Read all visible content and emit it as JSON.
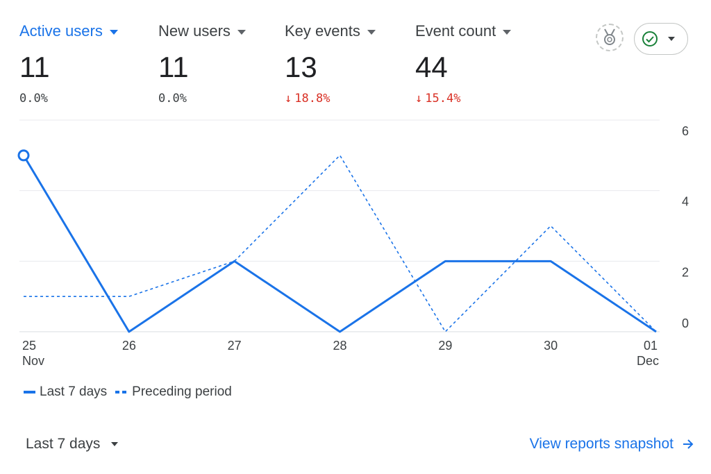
{
  "metrics": [
    {
      "label": "Active users",
      "value": "11",
      "delta": "0.0%",
      "direction": "none",
      "active": true
    },
    {
      "label": "New users",
      "value": "11",
      "delta": "0.0%",
      "direction": "none",
      "active": false
    },
    {
      "label": "Key events",
      "value": "13",
      "delta": "18.8%",
      "direction": "down",
      "active": false
    },
    {
      "label": "Event count",
      "value": "44",
      "delta": "15.4%",
      "direction": "down",
      "active": false
    }
  ],
  "toolbar": {
    "badge_icon": "medal-icon",
    "status_icon": "check-circle-icon",
    "status_color": "#188038"
  },
  "chart_data": {
    "type": "line",
    "x": [
      "25 Nov",
      "26",
      "27",
      "28",
      "29",
      "30",
      "01 Dec"
    ],
    "x_ticks": [
      {
        "line1": "25",
        "line2": "Nov"
      },
      {
        "line1": "26",
        "line2": ""
      },
      {
        "line1": "27",
        "line2": ""
      },
      {
        "line1": "28",
        "line2": ""
      },
      {
        "line1": "29",
        "line2": ""
      },
      {
        "line1": "30",
        "line2": ""
      },
      {
        "line1": "01",
        "line2": "Dec"
      }
    ],
    "y_ticks": [
      "0",
      "2",
      "4",
      "6"
    ],
    "ylim": [
      0,
      6
    ],
    "grid": true,
    "legend_position": "bottom-left",
    "series": [
      {
        "name": "Last 7 days",
        "style": "solid",
        "color": "#1a73e8",
        "values": [
          5,
          0,
          2,
          0,
          2,
          2,
          0
        ]
      },
      {
        "name": "Preceding period",
        "style": "dashed",
        "color": "#1a73e8",
        "values": [
          1,
          1,
          2,
          5,
          0,
          3,
          0
        ]
      }
    ]
  },
  "footer": {
    "date_range": "Last 7 days",
    "snapshot_link": "View reports snapshot"
  }
}
